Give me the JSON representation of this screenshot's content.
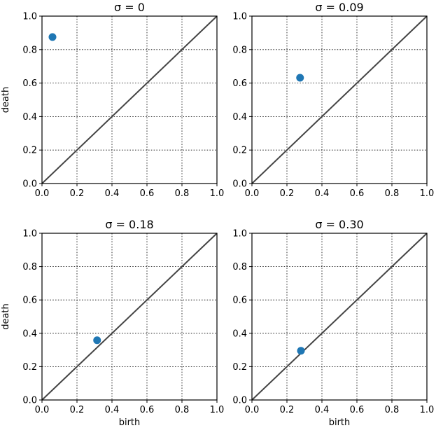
{
  "chart_data": [
    {
      "type": "scatter",
      "title": "σ = 0",
      "xlabel": "",
      "ylabel": "death",
      "xlim": [
        0,
        1
      ],
      "ylim": [
        0,
        1
      ],
      "ticks": [
        "0.0",
        "0.2",
        "0.4",
        "0.6",
        "0.8",
        "1.0"
      ],
      "grid": true,
      "diagonal": true,
      "points": [
        {
          "x": 0.06,
          "y": 0.875
        }
      ]
    },
    {
      "type": "scatter",
      "title": "σ = 0.09",
      "xlabel": "",
      "ylabel": "",
      "xlim": [
        0,
        1
      ],
      "ylim": [
        0,
        1
      ],
      "ticks": [
        "0.0",
        "0.2",
        "0.4",
        "0.6",
        "0.8",
        "1.0"
      ],
      "grid": true,
      "diagonal": true,
      "points": [
        {
          "x": 0.275,
          "y": 0.632
        }
      ]
    },
    {
      "type": "scatter",
      "title": "σ = 0.18",
      "xlabel": "birth",
      "ylabel": "death",
      "xlim": [
        0,
        1
      ],
      "ylim": [
        0,
        1
      ],
      "ticks": [
        "0.0",
        "0.2",
        "0.4",
        "0.6",
        "0.8",
        "1.0"
      ],
      "grid": true,
      "diagonal": true,
      "points": [
        {
          "x": 0.315,
          "y": 0.358
        }
      ]
    },
    {
      "type": "scatter",
      "title": "σ = 0.30",
      "xlabel": "birth",
      "ylabel": "",
      "xlim": [
        0,
        1
      ],
      "ylim": [
        0,
        1
      ],
      "ticks": [
        "0.0",
        "0.2",
        "0.4",
        "0.6",
        "0.8",
        "1.0"
      ],
      "grid": true,
      "diagonal": true,
      "points": [
        {
          "x": 0.28,
          "y": 0.295
        }
      ]
    }
  ],
  "colors": {
    "point": "#1f77b4",
    "diagonal": "#444444"
  }
}
